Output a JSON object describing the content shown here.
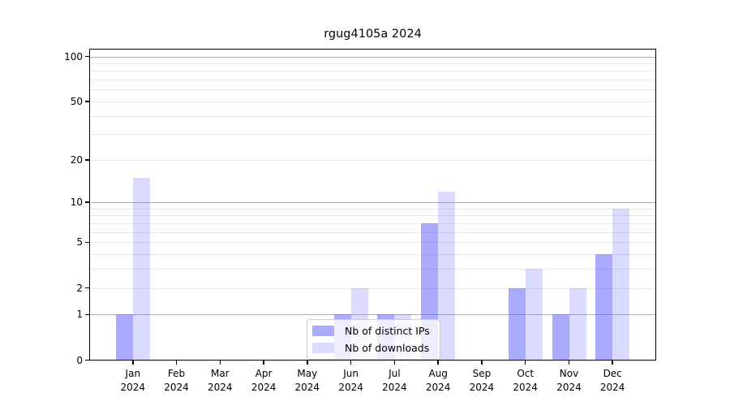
{
  "figure": {
    "title": "rgug4105a 2024"
  },
  "chart_data": {
    "type": "bar",
    "title": "rgug4105a 2024",
    "categories": [
      "Jan 2024",
      "Feb 2024",
      "Mar 2024",
      "Apr 2024",
      "May 2024",
      "Jun 2024",
      "Jul 2024",
      "Aug 2024",
      "Sep 2024",
      "Oct 2024",
      "Nov 2024",
      "Dec 2024"
    ],
    "series": [
      {
        "name": "Nb of distinct IPs",
        "color": "rgba(85,85,255,0.5)",
        "values": [
          1,
          0,
          0,
          0,
          0,
          1,
          1,
          7,
          0,
          2,
          1,
          4
        ]
      },
      {
        "name": "Nb of downloads",
        "color": "rgba(85,85,255,0.21)",
        "values": [
          15,
          0,
          0,
          0,
          0,
          2,
          1,
          12,
          0,
          3,
          2,
          9
        ]
      }
    ],
    "xlabel": "",
    "ylabel": "",
    "yscale": "log1p",
    "ylim": [
      0,
      113
    ],
    "yticks": [
      0,
      1,
      2,
      5,
      10,
      20,
      50,
      100
    ],
    "grid": "horizontal",
    "legend_position": "lower center"
  },
  "colors": {
    "grid_major": "#b0b0b0",
    "grid_minor": "#e9e9e9",
    "spine": "#000000",
    "background": "#ffffff",
    "distinct_ips_bar": "rgba(85,85,255,0.5)",
    "downloads_bar": "rgba(85,85,255,0.21)"
  }
}
